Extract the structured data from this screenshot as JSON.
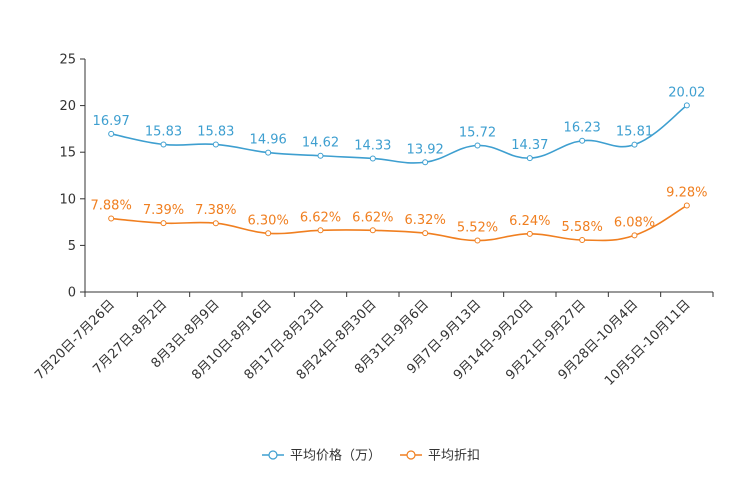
{
  "chart_data": {
    "type": "line",
    "categories": [
      "7月20日-7月26日",
      "7月27日-8月2日",
      "8月3日-8月9日",
      "8月10日-8月16日",
      "8月17日-8月23日",
      "8月24日-8月30日",
      "8月31日-9月6日",
      "9月7日-9月13日",
      "9月14日-9月20日",
      "9月21日-9月27日",
      "9月28日-10月4日",
      "10月5日-10月11日"
    ],
    "ylim": [
      0,
      25
    ],
    "yticks": [
      0,
      5,
      10,
      15,
      20,
      25
    ],
    "grid": false,
    "legend_position": "bottom-center",
    "series": [
      {
        "name": "平均价格（万）",
        "color": "#3e9fd0",
        "values": [
          16.97,
          15.83,
          15.83,
          14.96,
          14.62,
          14.33,
          13.92,
          15.72,
          14.37,
          16.23,
          15.81,
          20.02
        ],
        "labels": [
          "16.97",
          "15.83",
          "15.83",
          "14.96",
          "14.62",
          "14.33",
          "13.92",
          "15.72",
          "14.37",
          "16.23",
          "15.81",
          "20.02"
        ]
      },
      {
        "name": "平均折扣",
        "color": "#f07f20",
        "values": [
          7.88,
          7.39,
          7.38,
          6.3,
          6.62,
          6.62,
          6.32,
          5.52,
          6.24,
          5.58,
          6.08,
          9.28
        ],
        "labels": [
          "7.88%",
          "7.39%",
          "7.38%",
          "6.30%",
          "6.62%",
          "6.62%",
          "6.32%",
          "5.52%",
          "6.24%",
          "5.58%",
          "6.08%",
          "9.28%"
        ]
      }
    ]
  }
}
